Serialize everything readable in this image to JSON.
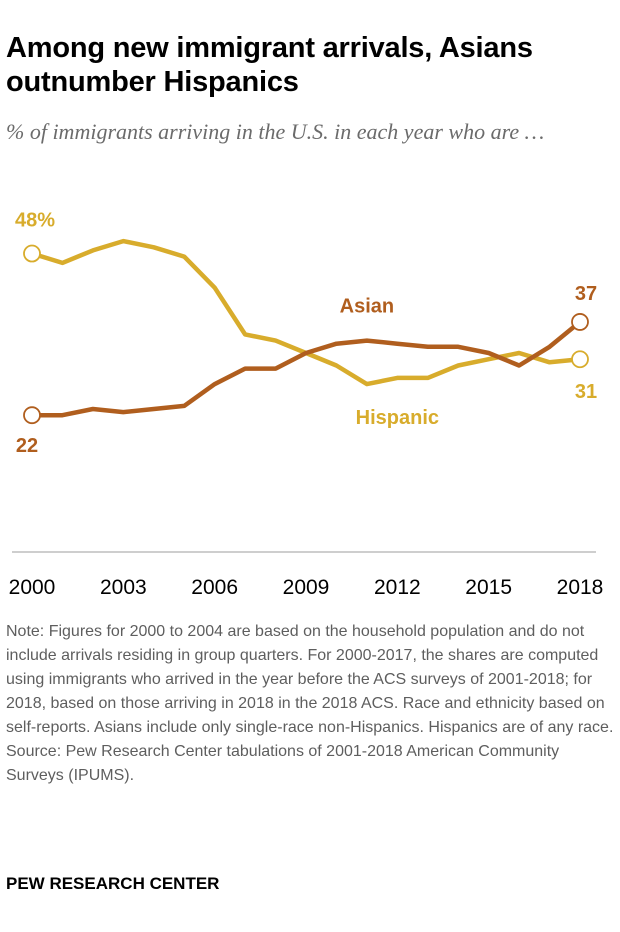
{
  "title": "Among new immigrant arrivals, Asians outnumber Hispanics",
  "subtitle": "% of immigrants arriving in the U.S. in each year who are …",
  "note": "Note: Figures for 2000 to 2004 are based on the household population and do not include arrivals residing in group quarters. For 2000-2017, the shares are computed using immigrants who arrived in the year before the ACS surveys of 2001-2018; for 2018, based on those arriving in 2018 in the 2018 ACS. Race and ethnicity based on self-reports. Asians include only single-race non-Hispanics. Hispanics are of any race.",
  "source": "Source: Pew Research Center tabulations of 2001-2018 American Community Surveys (IPUMS).",
  "organization": "PEW RESEARCH CENTER",
  "colors": {
    "asian": "#b05e1e",
    "hispanic": "#d8ac2c",
    "axis": "#9e9e9e"
  },
  "chart_data": {
    "type": "line",
    "title": "Among new immigrant arrivals, Asians outnumber Hispanics",
    "ylabel": "% of immigrants arriving in the U.S. in each year who are …",
    "xlabel": "",
    "x": [
      2000,
      2001,
      2002,
      2003,
      2004,
      2005,
      2006,
      2007,
      2008,
      2009,
      2010,
      2011,
      2012,
      2013,
      2014,
      2015,
      2016,
      2017,
      2018
    ],
    "xticks": [
      "2000",
      "2003",
      "2006",
      "2009",
      "2012",
      "2015",
      "2018"
    ],
    "ylim": [
      0,
      55
    ],
    "grid": false,
    "series": [
      {
        "name": "Asian",
        "values": [
          22,
          22,
          23,
          22.5,
          23,
          23.5,
          27,
          29.5,
          29.5,
          32,
          33.5,
          34,
          33.5,
          33,
          33,
          32,
          30,
          33,
          37
        ],
        "start_label": "22",
        "end_label": "37"
      },
      {
        "name": "Hispanic",
        "values": [
          48,
          46.5,
          48.5,
          50,
          49,
          47.5,
          42.5,
          35,
          34,
          32,
          30,
          27,
          28,
          28,
          30,
          31,
          32,
          30.5,
          31
        ],
        "start_label": "48%",
        "end_label": "31"
      }
    ]
  }
}
